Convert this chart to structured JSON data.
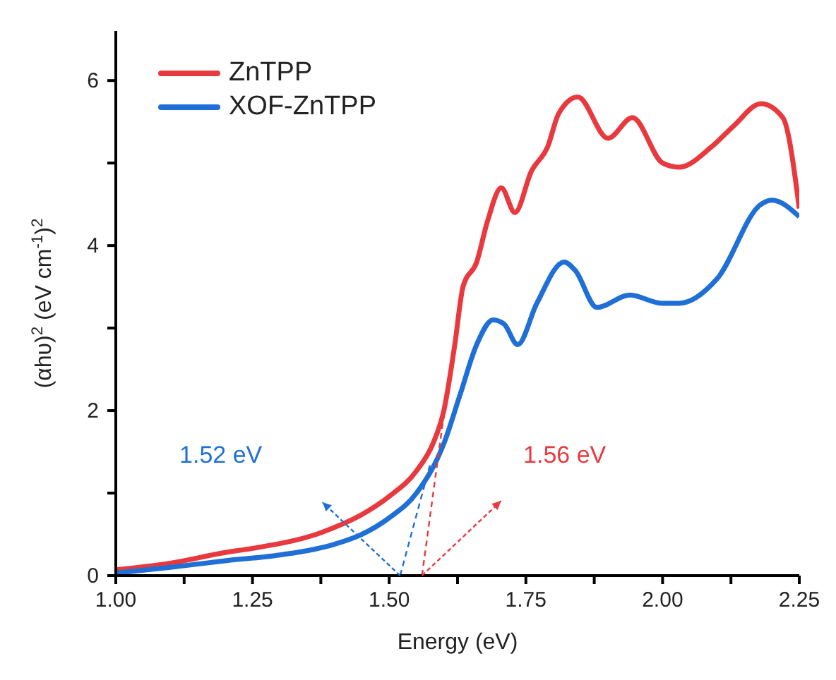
{
  "chart_data": {
    "type": "line",
    "xlabel": "Energy (eV)",
    "ylabel": "(αhυ)$^{2}$ (eV cm$^{-1}$)$^{2}$",
    "xlim": [
      1.0,
      2.25
    ],
    "ylim": [
      0,
      6.6
    ],
    "xticks": [
      {
        "value": 1,
        "label": "1.00"
      },
      {
        "value": 1.125,
        "label": null
      },
      {
        "value": 1.25,
        "label": "1.25"
      },
      {
        "value": 1.375,
        "label": null
      },
      {
        "value": 1.5,
        "label": "1.50"
      },
      {
        "value": 1.625,
        "label": null
      },
      {
        "value": 1.75,
        "label": "1.75"
      },
      {
        "value": 1.875,
        "label": null
      },
      {
        "value": 2,
        "label": "2.00"
      },
      {
        "value": 2.125,
        "label": null
      },
      {
        "value": 2.25,
        "label": "2.25"
      }
    ],
    "yticks": [
      0,
      {
        "value": 1,
        "label": null
      },
      2,
      {
        "value": 3,
        "label": null
      },
      4,
      {
        "value": 5,
        "label": null
      },
      6
    ],
    "legend": "top left",
    "line_style": "solid",
    "marker": "none",
    "series": [
      {
        "name": "ZnTPP",
        "color": "#e8393e",
        "x": [
          1.0,
          1.1,
          1.2,
          1.25,
          1.375,
          1.45,
          1.5,
          1.55,
          1.58,
          1.6,
          1.62,
          1.635,
          1.66,
          1.68,
          1.705,
          1.73,
          1.76,
          1.79,
          1.81,
          1.845,
          1.9,
          1.945,
          2.0,
          2.03,
          2.09,
          2.13,
          2.18,
          2.22,
          2.25
        ],
        "values": [
          0.07,
          0.15,
          0.28,
          0.33,
          0.52,
          0.74,
          0.96,
          1.27,
          1.6,
          2.0,
          2.8,
          3.5,
          3.8,
          4.3,
          4.7,
          4.4,
          4.9,
          5.2,
          5.6,
          5.8,
          5.3,
          5.55,
          5.0,
          4.95,
          5.2,
          5.45,
          5.72,
          5.55,
          4.45
        ]
      },
      {
        "name": "XOF-ZnTPP",
        "color": "#1f6fd6",
        "x": [
          1.0,
          1.1,
          1.2,
          1.3,
          1.4,
          1.45,
          1.5,
          1.55,
          1.6,
          1.63,
          1.66,
          1.69,
          1.71,
          1.735,
          1.77,
          1.82,
          1.84,
          1.88,
          1.94,
          2.0,
          2.03,
          2.1,
          2.18,
          2.2,
          2.25
        ],
        "values": [
          0.03,
          0.1,
          0.18,
          0.25,
          0.38,
          0.5,
          0.7,
          1.0,
          1.6,
          2.2,
          2.8,
          3.1,
          3.05,
          2.8,
          3.3,
          3.8,
          3.7,
          3.25,
          3.4,
          3.3,
          3.3,
          3.6,
          4.5,
          4.55,
          4.35
        ]
      },
      {
        "color": "#1f6fd6",
        "line_style": "dashed",
        "x": [
          1.52,
          1.575
        ],
        "values": [
          0,
          1.35
        ]
      },
      {
        "color": "#e8393e",
        "line_style": "dashed",
        "x": [
          1.56,
          1.6
        ],
        "values": [
          0,
          1.95
        ]
      }
    ],
    "annotations": [
      "1.52 eV",
      "1.56 eV"
    ]
  }
}
